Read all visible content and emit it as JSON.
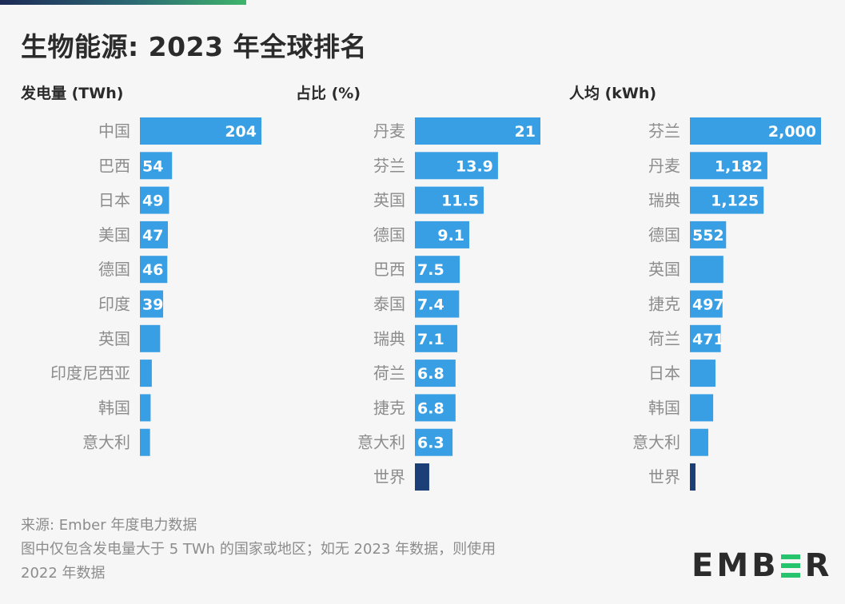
{
  "title": "生物能源: 2023 年全球排名",
  "colors": {
    "bar": "#389fe4",
    "world_bar": "#1d3f77",
    "label": "#8c8c8c",
    "title": "#2b2b2b",
    "logo_accent": "#27c46e",
    "gradient_start": "#1d2a57",
    "gradient_end": "#3fb46c"
  },
  "chart_data": [
    {
      "type": "bar",
      "orientation": "horizontal",
      "title": "发电量 (TWh)",
      "xlabel": "",
      "ylabel": "",
      "xlim": [
        0,
        204
      ],
      "grid": false,
      "categories": [
        "中国",
        "巴西",
        "日本",
        "美国",
        "德国",
        "印度",
        "英国",
        "印度尼西亚",
        "韩国",
        "意大利"
      ],
      "values": [
        204,
        54,
        49,
        47,
        46,
        39,
        34,
        20,
        18,
        17
      ],
      "data_labels": [
        "204",
        "54",
        "49",
        "47",
        "46",
        "39",
        "",
        "",
        "",
        ""
      ],
      "highlight": []
    },
    {
      "type": "bar",
      "orientation": "horizontal",
      "title": "占比 (%)",
      "xlabel": "",
      "ylabel": "",
      "xlim": [
        0,
        21
      ],
      "grid": false,
      "categories": [
        "丹麦",
        "芬兰",
        "英国",
        "德国",
        "巴西",
        "泰国",
        "瑞典",
        "荷兰",
        "捷克",
        "意大利",
        "世界"
      ],
      "values": [
        21,
        13.9,
        11.5,
        9.1,
        7.5,
        7.4,
        7.1,
        6.8,
        6.8,
        6.3,
        2.4
      ],
      "data_labels": [
        "21",
        "13.9",
        "11.5",
        "9.1",
        "7.5",
        "7.4",
        "7.1",
        "6.8",
        "6.8",
        "6.3",
        ""
      ],
      "highlight": [
        "世界"
      ]
    },
    {
      "type": "bar",
      "orientation": "horizontal",
      "title": "人均 (kWh)",
      "xlabel": "",
      "ylabel": "",
      "xlim": [
        0,
        2000
      ],
      "grid": false,
      "categories": [
        "芬兰",
        "丹麦",
        "瑞典",
        "德国",
        "英国",
        "捷克",
        "荷兰",
        "日本",
        "韩国",
        "意大利",
        "世界"
      ],
      "values": [
        2000,
        1182,
        1125,
        552,
        510,
        497,
        471,
        390,
        355,
        280,
        85
      ],
      "data_labels": [
        "2,000",
        "1,182",
        "1,125",
        "552",
        "",
        "497",
        "471",
        "",
        "",
        "",
        ""
      ],
      "highlight": [
        "世界"
      ]
    }
  ],
  "footer": {
    "source": "来源: Ember 年度电力数据",
    "note_line1": "图中仅包含发电量大于 5 TWh 的国家或地区；如无 2023 年数据，则使用",
    "note_line2": "2022 年数据"
  },
  "logo": {
    "left": "EMB",
    "right": "R"
  }
}
